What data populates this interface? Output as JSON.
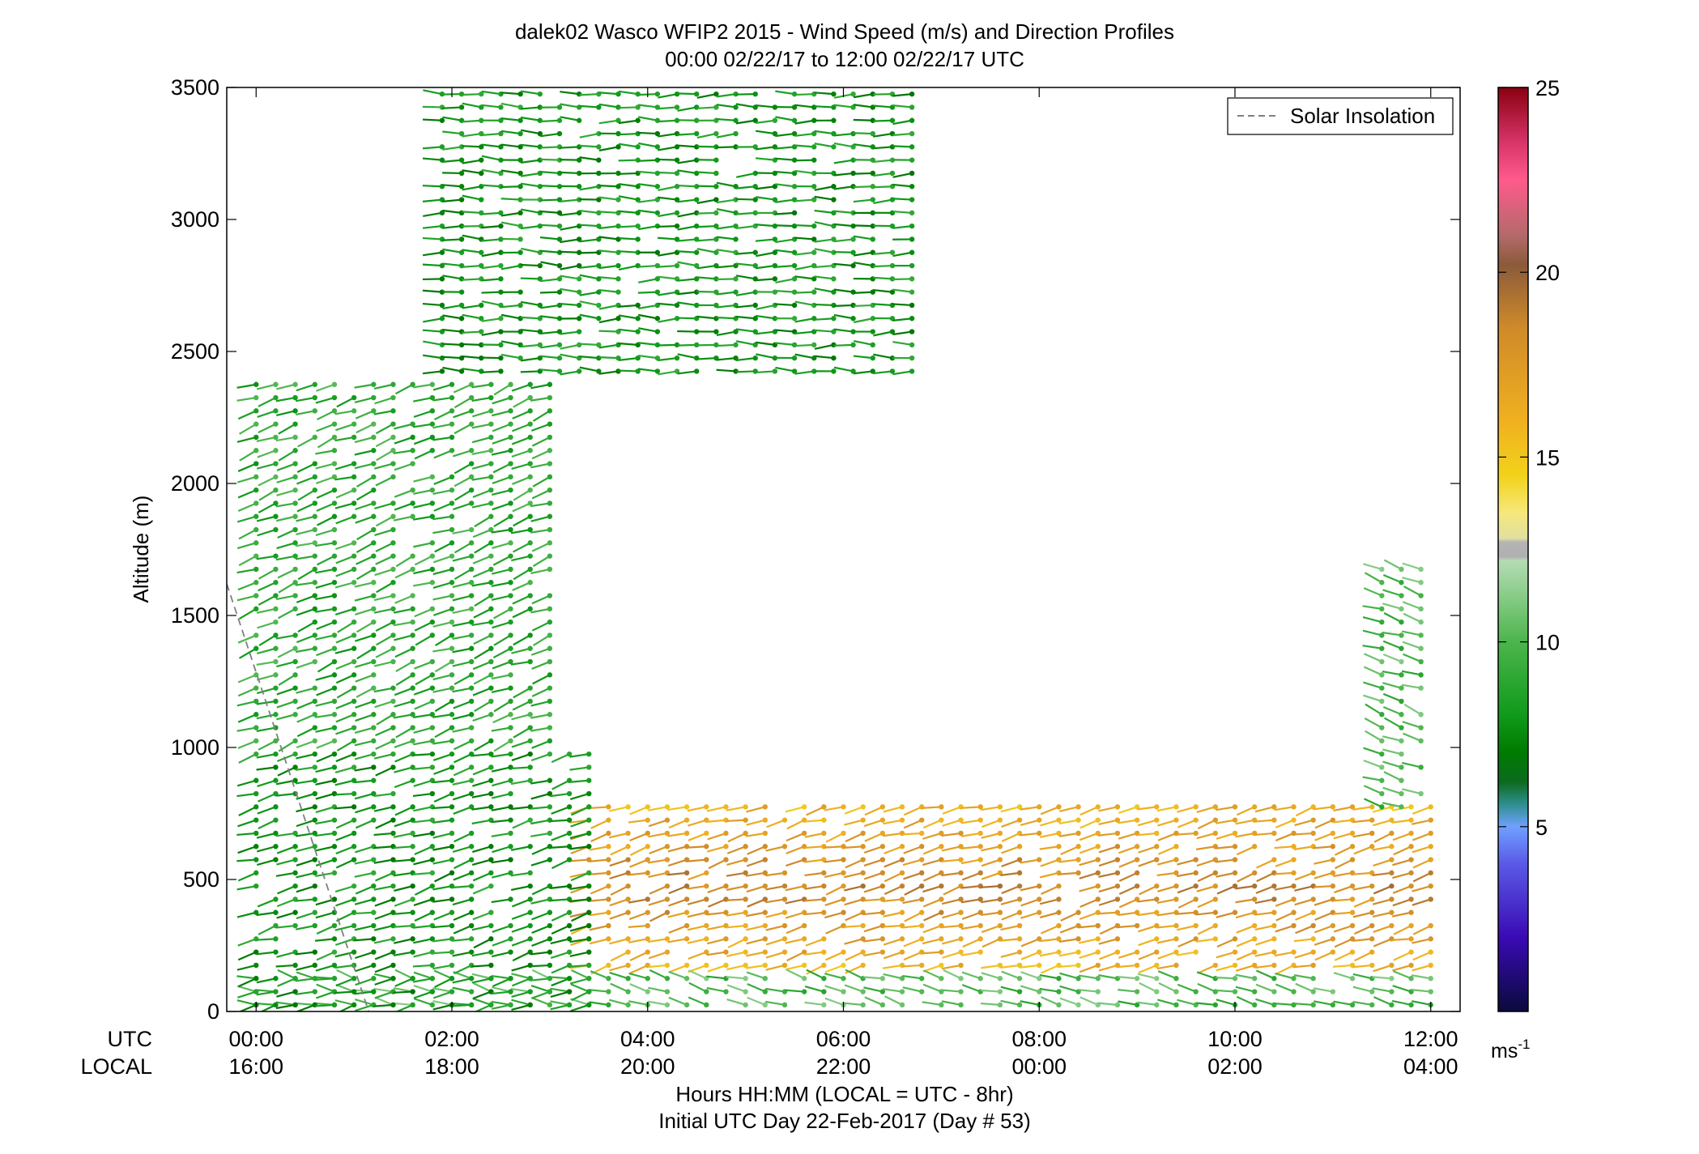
{
  "chart_data": {
    "type": "wind-barb-profile",
    "title": "dalek02 Wasco WFIP2 2015 - Wind Speed (m/s) and Direction Profiles",
    "subtitle": "00:00 02/22/17 to 12:00 02/22/17  UTC",
    "ylabel": "Altitude (m)",
    "xlabel": "Hours HH:MM  (LOCAL = UTC - 8hr)",
    "xlabel2": "Initial UTC Day 22-Feb-2017 (Day # 53)",
    "row_labels": {
      "utc": "UTC",
      "local": "LOCAL"
    },
    "x_hours_range": [
      -0.3,
      12.3
    ],
    "ylim": [
      0,
      3500
    ],
    "x_ticks": [
      {
        "hour": 0,
        "utc": "00:00",
        "local": "16:00"
      },
      {
        "hour": 2,
        "utc": "02:00",
        "local": "18:00"
      },
      {
        "hour": 4,
        "utc": "04:00",
        "local": "20:00"
      },
      {
        "hour": 6,
        "utc": "06:00",
        "local": "22:00"
      },
      {
        "hour": 8,
        "utc": "08:00",
        "local": "00:00"
      },
      {
        "hour": 10,
        "utc": "10:00",
        "local": "02:00"
      },
      {
        "hour": 12,
        "utc": "12:00",
        "local": "04:00"
      }
    ],
    "y_ticks": [
      {
        "value": 0,
        "label": "0"
      },
      {
        "value": 500,
        "label": "500"
      },
      {
        "value": 1000,
        "label": "1000"
      },
      {
        "value": 1500,
        "label": "1500"
      },
      {
        "value": 2000,
        "label": "2000"
      },
      {
        "value": 2500,
        "label": "2500"
      },
      {
        "value": 3000,
        "label": "3000"
      },
      {
        "value": 3500,
        "label": "3500"
      }
    ],
    "legend": {
      "label": "Solar Insolation",
      "position": "top-right",
      "style": "dashed",
      "color": "#7f7f7f"
    },
    "solar_insolation_line": [
      [
        -0.3,
        1620
      ],
      [
        1.15,
        0
      ]
    ],
    "colorbar": {
      "range": [
        0,
        25
      ],
      "unit_label": "ms",
      "unit_exponent": "-1",
      "ticks": [
        {
          "value": 5,
          "label": "5"
        },
        {
          "value": 10,
          "label": "10"
        },
        {
          "value": 15,
          "label": "15"
        },
        {
          "value": 20,
          "label": "20"
        },
        {
          "value": 25,
          "label": "25"
        }
      ],
      "stops": [
        [
          0,
          "#0a0a3c"
        ],
        [
          2,
          "#3a0ab4"
        ],
        [
          4,
          "#5a5ae6"
        ],
        [
          5,
          "#6fa0ff"
        ],
        [
          5.6,
          "#2f8f8f"
        ],
        [
          6.2,
          "#0c6b20"
        ],
        [
          7,
          "#007a00"
        ],
        [
          8,
          "#0f9a1a"
        ],
        [
          10,
          "#4cb54c"
        ],
        [
          11.5,
          "#94d094"
        ],
        [
          12.2,
          "#b4dcb4"
        ],
        [
          12.3,
          "#b0b0b0"
        ],
        [
          12.7,
          "#b4b4b4"
        ],
        [
          12.8,
          "#e0e0a0"
        ],
        [
          13.5,
          "#f6e87a"
        ],
        [
          14.5,
          "#f2d21a"
        ],
        [
          16,
          "#f0b020"
        ],
        [
          18.5,
          "#cf8a2a"
        ],
        [
          20.2,
          "#8b5a3a"
        ],
        [
          21,
          "#b36a6a"
        ],
        [
          22.5,
          "#ff5a8c"
        ],
        [
          23.5,
          "#d8356a"
        ],
        [
          25,
          "#8a0010"
        ]
      ]
    },
    "wind_field": {
      "time_step_hours": 0.2,
      "height_step_m": 50,
      "regions": [
        {
          "name": "low-level-jet",
          "t": [
            3.4,
            12.0
          ],
          "z": [
            150,
            760
          ],
          "speed": 16,
          "speed_core": 18.5,
          "dir_deg": 285
        },
        {
          "name": "surface-layer",
          "t": [
            0.0,
            12.0
          ],
          "z": [
            0,
            150
          ],
          "speed": 10,
          "dir_deg": 255
        },
        {
          "name": "early-low-levels",
          "t": [
            0.0,
            3.4
          ],
          "z": [
            0,
            1000
          ],
          "speed": 8,
          "dir_deg": 285
        },
        {
          "name": "early-mid-levels",
          "t": [
            0.0,
            3.0
          ],
          "z": [
            1000,
            2400
          ],
          "speed": 9,
          "dir_deg": 290
        },
        {
          "name": "upper-levels",
          "t": [
            1.9,
            6.7
          ],
          "z": [
            2400,
            3500
          ],
          "speed": 8,
          "dir_deg": 270
        },
        {
          "name": "evening-top-profiles",
          "t": [
            11.5,
            11.9
          ],
          "z": [
            750,
            1700
          ],
          "speed": 10,
          "dir_deg": 250
        }
      ]
    }
  }
}
